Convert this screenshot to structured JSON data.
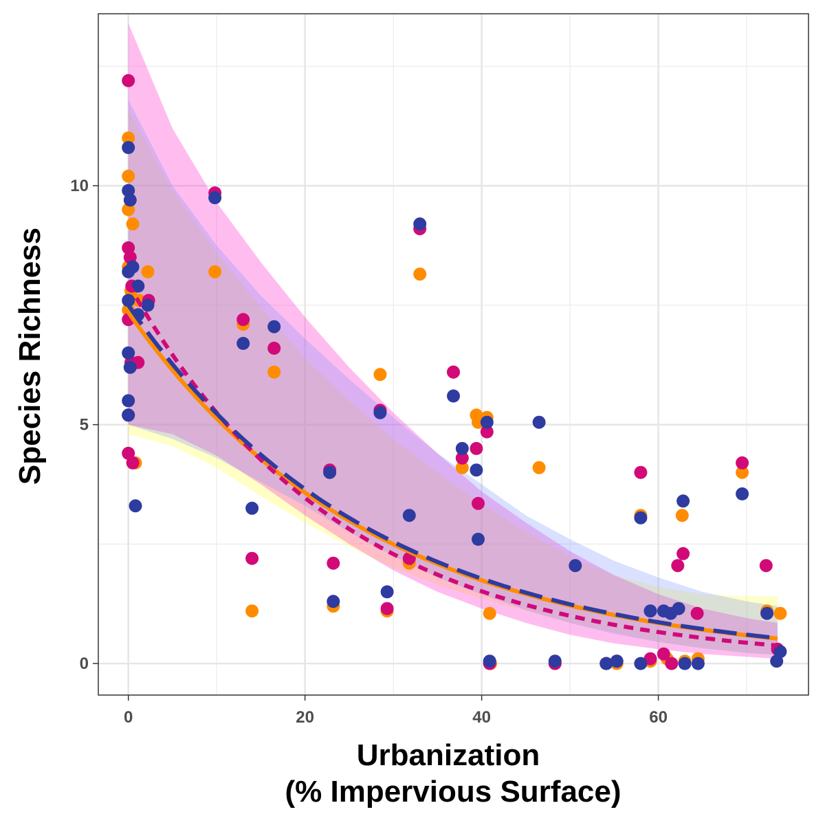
{
  "chart_data": {
    "type": "scatter",
    "xlabel_lines": [
      "Urbanization",
      "(% Impervious Surface)"
    ],
    "ylabel": "Species Richness",
    "xlim": [
      -3.4,
      77
    ],
    "ylim": [
      -0.66,
      13.6
    ],
    "x_ticks": [
      0,
      20,
      40,
      60
    ],
    "y_ticks": [
      0,
      5,
      10
    ],
    "grid": true,
    "legend": "none",
    "series": [
      {
        "color": "#ff8c00",
        "line_style": "solid",
        "ribbon_color": "#ffff33",
        "ribbon_opacity": 0.28,
        "fit": {
          "a": 7.35,
          "b": 0.036,
          "x_end": 73.5
        },
        "ribbon": {
          "x": [
            0,
            5,
            10,
            15,
            20,
            25,
            30,
            35,
            40,
            45,
            50,
            55,
            60,
            65,
            70,
            73.5
          ],
          "lower": [
            4.8,
            4.55,
            4.1,
            3.5,
            2.95,
            2.45,
            2.0,
            1.65,
            1.35,
            1.1,
            0.85,
            0.65,
            0.45,
            0.32,
            0.22,
            0.18
          ],
          "upper": [
            11.6,
            9.9,
            8.6,
            7.45,
            6.4,
            5.5,
            4.7,
            4.0,
            3.35,
            2.75,
            2.25,
            1.85,
            1.6,
            1.45,
            1.4,
            1.4
          ]
        },
        "points": [
          [
            0,
            11
          ],
          [
            0,
            10.2
          ],
          [
            0,
            9.5
          ],
          [
            0.5,
            9.2
          ],
          [
            0,
            8.3
          ],
          [
            0.3,
            7.8
          ],
          [
            0,
            7.4
          ],
          [
            0.2,
            6.2
          ],
          [
            0,
            5.2
          ],
          [
            0.8,
            4.2
          ],
          [
            1.2,
            7.6
          ],
          [
            2.2,
            8.2
          ],
          [
            9.8,
            8.2
          ],
          [
            13,
            7.1
          ],
          [
            14,
            1.1
          ],
          [
            16.5,
            6.1
          ],
          [
            22.8,
            4
          ],
          [
            23.2,
            1.2
          ],
          [
            28.5,
            6.05
          ],
          [
            29.3,
            1.1
          ],
          [
            31.8,
            2.1
          ],
          [
            33,
            8.15
          ],
          [
            36.8,
            6.1
          ],
          [
            37.8,
            4.1
          ],
          [
            39.4,
            5.2
          ],
          [
            39.6,
            5.05
          ],
          [
            40.6,
            5.15
          ],
          [
            40.9,
            1.05
          ],
          [
            46.5,
            4.1
          ],
          [
            54.1,
            0
          ],
          [
            55.3,
            0
          ],
          [
            58,
            3.1
          ],
          [
            59.1,
            0.05
          ],
          [
            61,
            0.1
          ],
          [
            62.7,
            3.1
          ],
          [
            63,
            0.05
          ],
          [
            64.5,
            0.1
          ],
          [
            69.5,
            4
          ],
          [
            72.3,
            1.1
          ],
          [
            73.8,
            1.05
          ],
          [
            48.3,
            0
          ],
          [
            41,
            0
          ]
        ]
      },
      {
        "color": "#d10a78",
        "line_style": "dotted",
        "ribbon_color": "#ff33cc",
        "ribbon_opacity": 0.32,
        "fit": {
          "a": 7.95,
          "b": 0.0415,
          "x_end": 73.5
        },
        "ribbon": {
          "x": [
            0,
            5,
            10,
            15,
            20,
            25,
            30,
            35,
            40,
            45,
            50,
            55,
            60,
            65,
            70,
            73.5
          ],
          "lower": [
            5.0,
            4.8,
            4.35,
            3.75,
            3.1,
            2.5,
            1.95,
            1.5,
            1.15,
            0.85,
            0.6,
            0.42,
            0.3,
            0.2,
            0.14,
            0.1
          ],
          "upper": [
            13.4,
            11.2,
            9.65,
            8.4,
            7.25,
            6.2,
            5.25,
            4.4,
            3.6,
            2.95,
            2.35,
            1.85,
            1.45,
            1.15,
            0.95,
            0.85
          ]
        },
        "points": [
          [
            0,
            12.2
          ],
          [
            0,
            8.7
          ],
          [
            0.2,
            8.5
          ],
          [
            0.4,
            7.9
          ],
          [
            0,
            7.2
          ],
          [
            0.3,
            6.3
          ],
          [
            1.1,
            6.3
          ],
          [
            0,
            5.2
          ],
          [
            0.5,
            4.2
          ],
          [
            0,
            4.4
          ],
          [
            2.3,
            7.6
          ],
          [
            9.8,
            9.85
          ],
          [
            13,
            7.2
          ],
          [
            14,
            2.2
          ],
          [
            16.5,
            6.6
          ],
          [
            22.8,
            4.05
          ],
          [
            23.2,
            2.1
          ],
          [
            28.5,
            5.3
          ],
          [
            29.3,
            1.15
          ],
          [
            31.8,
            2.2
          ],
          [
            33,
            9.1
          ],
          [
            36.8,
            6.1
          ],
          [
            37.8,
            4.3
          ],
          [
            39.4,
            4.5
          ],
          [
            39.6,
            3.35
          ],
          [
            40.6,
            4.85
          ],
          [
            40.9,
            0
          ],
          [
            48.3,
            0
          ],
          [
            54.1,
            0
          ],
          [
            55.3,
            0.05
          ],
          [
            58,
            4
          ],
          [
            59.1,
            0.1
          ],
          [
            60.6,
            0.2
          ],
          [
            61.5,
            0
          ],
          [
            62.2,
            2.05
          ],
          [
            62.8,
            2.3
          ],
          [
            64.4,
            1.05
          ],
          [
            69.5,
            4.2
          ],
          [
            72.2,
            2.05
          ],
          [
            73.5,
            0.3
          ]
        ]
      },
      {
        "color": "#2e3ba0",
        "line_style": "dashed",
        "ribbon_color": "#7a8fff",
        "ribbon_opacity": 0.28,
        "fit": {
          "a": 7.5,
          "b": 0.036,
          "x_end": 73.5
        },
        "ribbon": {
          "x": [
            0,
            5,
            10,
            15,
            20,
            25,
            30,
            35,
            40,
            45,
            50,
            55,
            60,
            65,
            70,
            73.5
          ],
          "lower": [
            5.0,
            4.7,
            4.3,
            3.8,
            3.3,
            2.75,
            2.25,
            1.8,
            1.45,
            1.12,
            0.85,
            0.62,
            0.45,
            0.32,
            0.22,
            0.18
          ],
          "upper": [
            11.8,
            10.0,
            8.75,
            7.7,
            6.8,
            5.95,
            5.15,
            4.4,
            3.75,
            3.1,
            2.6,
            2.15,
            1.8,
            1.5,
            1.3,
            1.2
          ]
        },
        "points": [
          [
            0,
            10.8
          ],
          [
            0,
            9.9
          ],
          [
            0.2,
            9.7
          ],
          [
            0.5,
            8.3
          ],
          [
            0,
            8.2
          ],
          [
            1.1,
            7.9
          ],
          [
            0,
            7.6
          ],
          [
            2.2,
            7.5
          ],
          [
            1.1,
            7.3
          ],
          [
            0,
            6.5
          ],
          [
            0.2,
            6.2
          ],
          [
            0,
            5.5
          ],
          [
            0,
            5.2
          ],
          [
            0.8,
            3.3
          ],
          [
            9.8,
            9.75
          ],
          [
            13,
            6.7
          ],
          [
            14,
            3.25
          ],
          [
            16.5,
            7.05
          ],
          [
            22.8,
            4
          ],
          [
            23.2,
            1.3
          ],
          [
            28.5,
            5.25
          ],
          [
            29.3,
            1.5
          ],
          [
            31.8,
            3.1
          ],
          [
            33,
            9.2
          ],
          [
            36.8,
            5.6
          ],
          [
            37.8,
            4.5
          ],
          [
            39.4,
            4.05
          ],
          [
            39.6,
            2.6
          ],
          [
            40.6,
            5.05
          ],
          [
            40.9,
            0.05
          ],
          [
            46.5,
            5.05
          ],
          [
            48.3,
            0.05
          ],
          [
            50.6,
            2.05
          ],
          [
            54.1,
            0
          ],
          [
            55.3,
            0.05
          ],
          [
            58,
            0
          ],
          [
            58,
            3.05
          ],
          [
            59.1,
            1.1
          ],
          [
            60.6,
            1.1
          ],
          [
            61.4,
            1.05
          ],
          [
            62.3,
            1.15
          ],
          [
            62.8,
            3.4
          ],
          [
            63,
            0
          ],
          [
            64.5,
            0
          ],
          [
            69.5,
            3.55
          ],
          [
            72.3,
            1.05
          ],
          [
            73.4,
            0.05
          ],
          [
            73.8,
            0.25
          ]
        ]
      }
    ]
  }
}
